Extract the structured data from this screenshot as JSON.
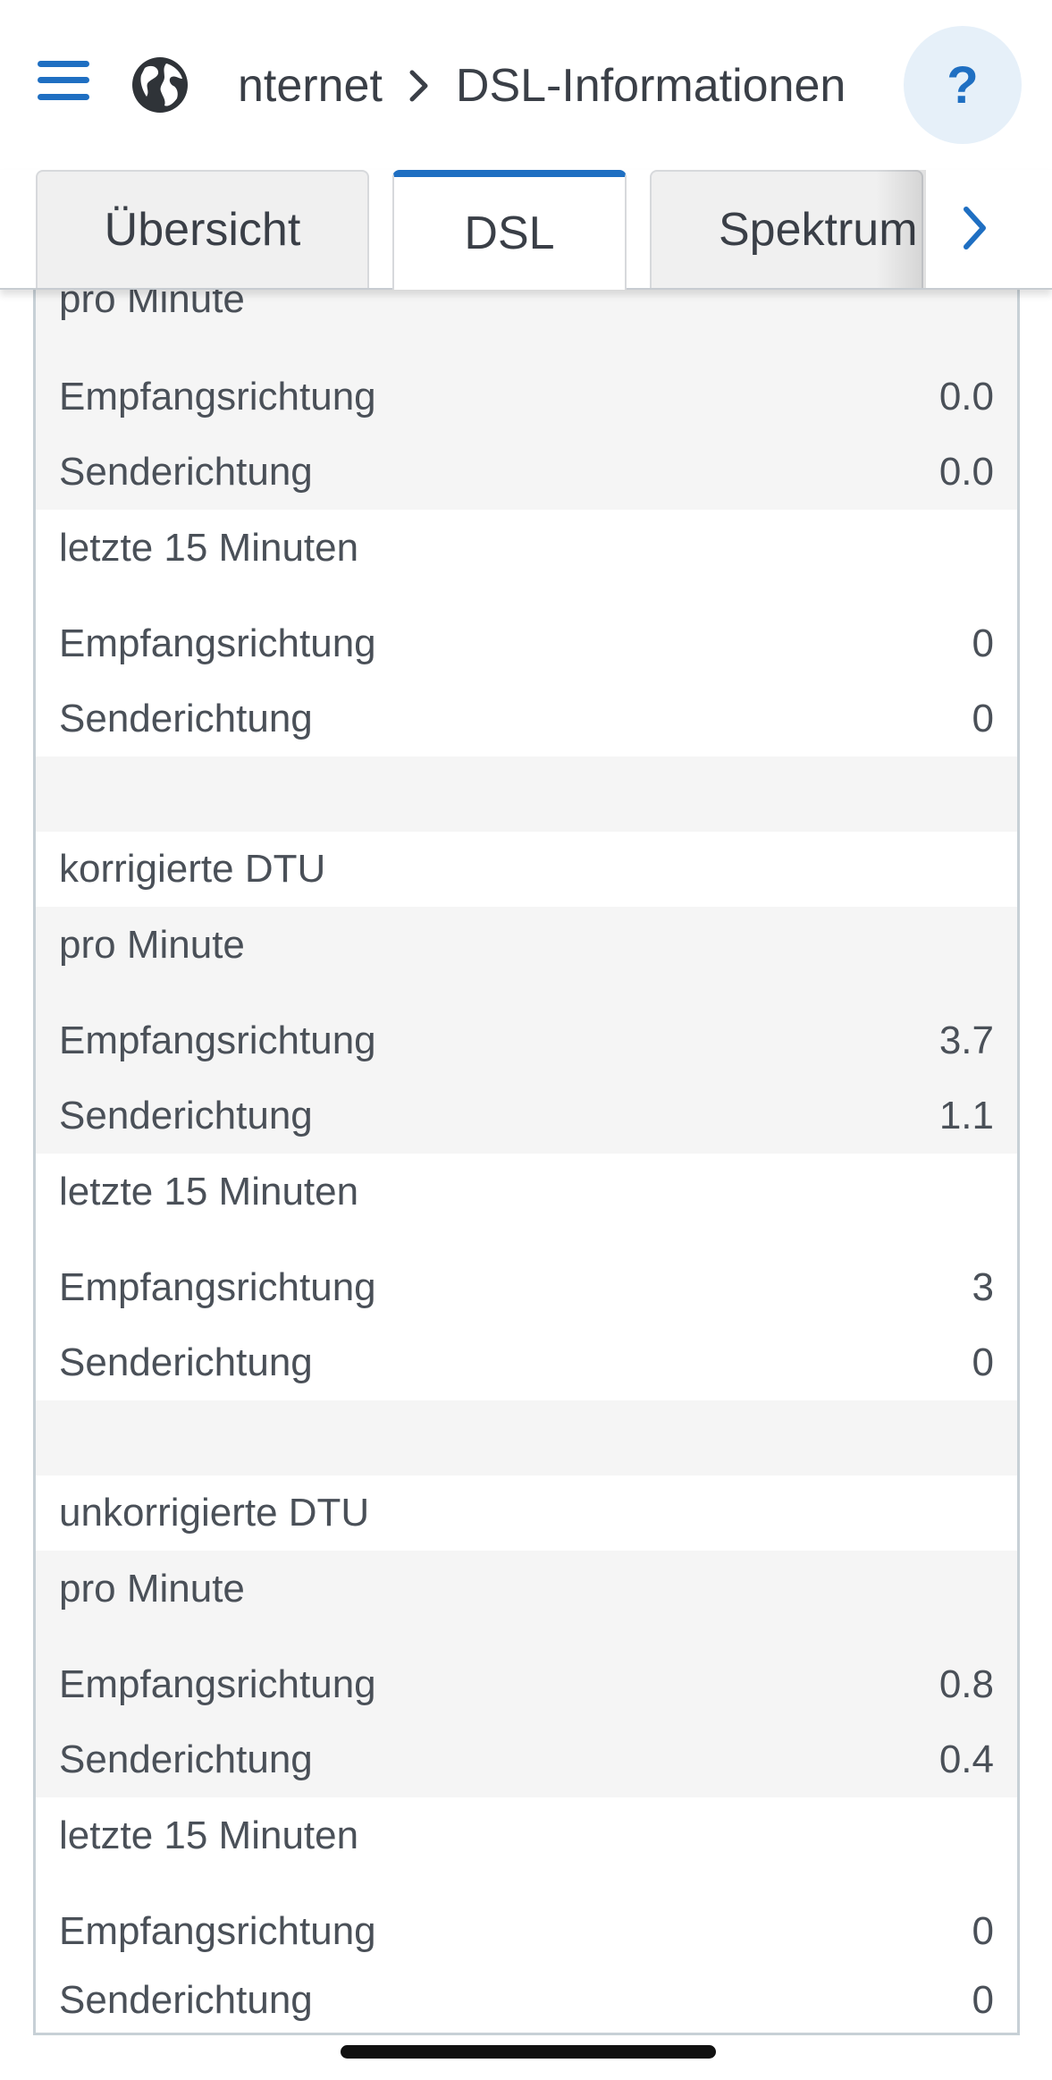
{
  "header": {
    "breadcrumb_parent": "nternet",
    "breadcrumb_current": "DSL-Informationen",
    "help_label": "?"
  },
  "tabs": [
    {
      "label": "Übersicht"
    },
    {
      "label": "DSL"
    },
    {
      "label": "Spektrum"
    }
  ],
  "sections": [
    {
      "title": "",
      "pro_minute_label": "pro Minute",
      "pro_minute": {
        "empfang_label": "Empfangsrichtung",
        "empfang": "0.0",
        "sende_label": "Senderichtung",
        "sende": "0.0"
      },
      "letzte_label": "letzte 15 Minuten",
      "letzte": {
        "empfang_label": "Empfangsrichtung",
        "empfang": "0",
        "sende_label": "Senderichtung",
        "sende": "0"
      }
    },
    {
      "title": "korrigierte DTU",
      "pro_minute_label": "pro Minute",
      "pro_minute": {
        "empfang_label": "Empfangsrichtung",
        "empfang": "3.7",
        "sende_label": "Senderichtung",
        "sende": "1.1"
      },
      "letzte_label": "letzte 15 Minuten",
      "letzte": {
        "empfang_label": "Empfangsrichtung",
        "empfang": "3",
        "sende_label": "Senderichtung",
        "sende": "0"
      }
    },
    {
      "title": "unkorrigierte DTU",
      "pro_minute_label": "pro Minute",
      "pro_minute": {
        "empfang_label": "Empfangsrichtung",
        "empfang": "0.8",
        "sende_label": "Senderichtung",
        "sende": "0.4"
      },
      "letzte_label": "letzte 15 Minuten",
      "letzte": {
        "empfang_label": "Empfangsrichtung",
        "empfang": "0",
        "sende_label": "Senderichtung",
        "sende": "0"
      }
    }
  ],
  "colors": {
    "accent": "#1f6fc2",
    "text": "#4a5058",
    "row_gray": "#f5f5f5"
  },
  "icons": {
    "menu": "hamburger-icon",
    "globe": "globe-icon",
    "separator": "chevron-right-icon",
    "next": "chevron-right-icon"
  }
}
